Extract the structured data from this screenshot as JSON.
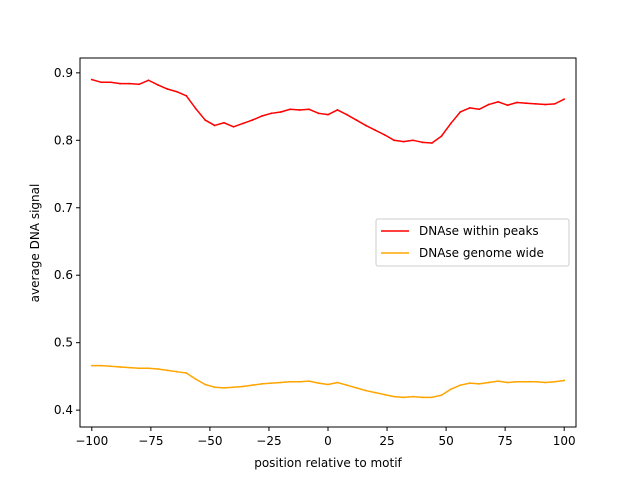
{
  "chart_data": {
    "type": "line",
    "title": "",
    "xlabel": "position relative to motif",
    "ylabel": "average DNA signal",
    "xlim": [
      -105,
      105
    ],
    "ylim": [
      0.375,
      0.922
    ],
    "xticks": [
      -100,
      -75,
      -50,
      -25,
      0,
      25,
      50,
      75,
      100
    ],
    "xtick_labels": [
      "−100",
      "−75",
      "−50",
      "−25",
      "0",
      "25",
      "50",
      "75",
      "100"
    ],
    "yticks": [
      0.4,
      0.5,
      0.6,
      0.7,
      0.8,
      0.9
    ],
    "ytick_labels": [
      "0.4",
      "0.5",
      "0.6",
      "0.7",
      "0.8",
      "0.9"
    ],
    "grid": false,
    "legend_position": "center-right",
    "x": [
      -100,
      -96,
      -92,
      -88,
      -84,
      -80,
      -76,
      -72,
      -68,
      -64,
      -60,
      -56,
      -52,
      -48,
      -44,
      -40,
      -36,
      -32,
      -28,
      -24,
      -20,
      -16,
      -12,
      -8,
      -4,
      0,
      4,
      8,
      12,
      16,
      20,
      24,
      28,
      32,
      36,
      40,
      44,
      48,
      52,
      56,
      60,
      64,
      68,
      72,
      76,
      80,
      84,
      88,
      92,
      96,
      100
    ],
    "series": [
      {
        "name": "DNAse within peaks",
        "color": "#ff0000",
        "values": [
          0.89,
          0.886,
          0.886,
          0.884,
          0.884,
          0.883,
          0.889,
          0.882,
          0.876,
          0.872,
          0.866,
          0.847,
          0.83,
          0.822,
          0.826,
          0.82,
          0.825,
          0.83,
          0.836,
          0.84,
          0.842,
          0.846,
          0.845,
          0.846,
          0.84,
          0.838,
          0.845,
          0.838,
          0.83,
          0.822,
          0.815,
          0.808,
          0.8,
          0.798,
          0.8,
          0.797,
          0.796,
          0.806,
          0.825,
          0.842,
          0.848,
          0.846,
          0.853,
          0.857,
          0.852,
          0.856,
          0.855,
          0.854,
          0.853,
          0.854,
          0.861
        ]
      },
      {
        "name": "DNAse genome wide",
        "color": "#ffa500",
        "values": [
          0.466,
          0.466,
          0.465,
          0.464,
          0.463,
          0.462,
          0.462,
          0.461,
          0.459,
          0.457,
          0.455,
          0.446,
          0.438,
          0.434,
          0.433,
          0.434,
          0.435,
          0.437,
          0.439,
          0.44,
          0.441,
          0.442,
          0.442,
          0.443,
          0.44,
          0.438,
          0.441,
          0.437,
          0.433,
          0.429,
          0.426,
          0.423,
          0.42,
          0.419,
          0.42,
          0.419,
          0.419,
          0.422,
          0.431,
          0.437,
          0.44,
          0.439,
          0.441,
          0.443,
          0.441,
          0.442,
          0.442,
          0.442,
          0.441,
          0.442,
          0.444
        ]
      }
    ]
  }
}
